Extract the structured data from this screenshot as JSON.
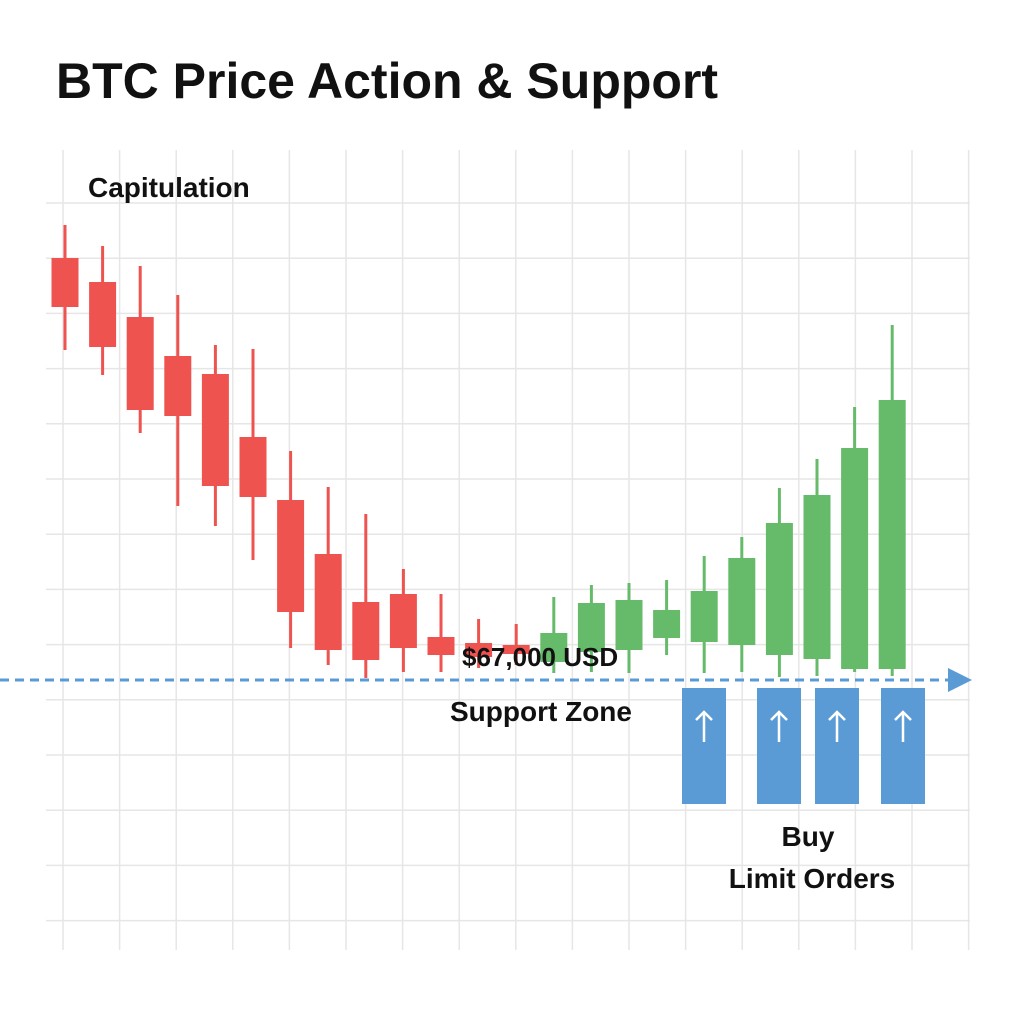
{
  "chart_data": {
    "type": "candlestick",
    "title": "BTC Price Action & Support",
    "annotations": {
      "capitulation": "Capitulation",
      "support_zone": "Support Zone",
      "buy_orders": [
        "Buy",
        "Limit Orders"
      ]
    },
    "categories": [
      null,
      null,
      null,
      null,
      null,
      null,
      null,
      null,
      null,
      null,
      null,
      null,
      null,
      null,
      null,
      null,
      null,
      null,
      null,
      null,
      null,
      null,
      null
    ],
    "open": [
      75440,
      74960,
      74260,
      73480,
      73120,
      71860,
      70600,
      69520,
      68560,
      68720,
      67860,
      67740,
      67700,
      67360,
      67560,
      67600,
      67840,
      67760,
      67700,
      67500,
      67420,
      67220,
      67220
    ],
    "high": [
      76100,
      75680,
      75280,
      74700,
      73700,
      73620,
      71580,
      70860,
      70320,
      69220,
      68720,
      68220,
      68120,
      68660,
      68900,
      68940,
      69000,
      69480,
      69860,
      70840,
      71420,
      72460,
      74100
    ],
    "low": [
      73600,
      73100,
      71940,
      70480,
      70080,
      69400,
      67640,
      67300,
      67040,
      67160,
      67160,
      67240,
      67300,
      67140,
      67160,
      67140,
      67500,
      67140,
      67160,
      67060,
      67080,
      67160,
      67080
    ],
    "close": [
      74460,
      73660,
      72400,
      72280,
      70880,
      70660,
      68360,
      67600,
      67400,
      67640,
      67500,
      67460,
      67520,
      67940,
      68540,
      68600,
      68400,
      68780,
      69440,
      70140,
      70700,
      71640,
      72600
    ],
    "up_color": "#66bb6a",
    "down_color": "#ef5350",
    "support": {
      "value": 67000,
      "label": "$67,000 USD",
      "color": "#5b9bd5"
    },
    "ylim": [
      61600,
      77600
    ],
    "grid": true
  }
}
